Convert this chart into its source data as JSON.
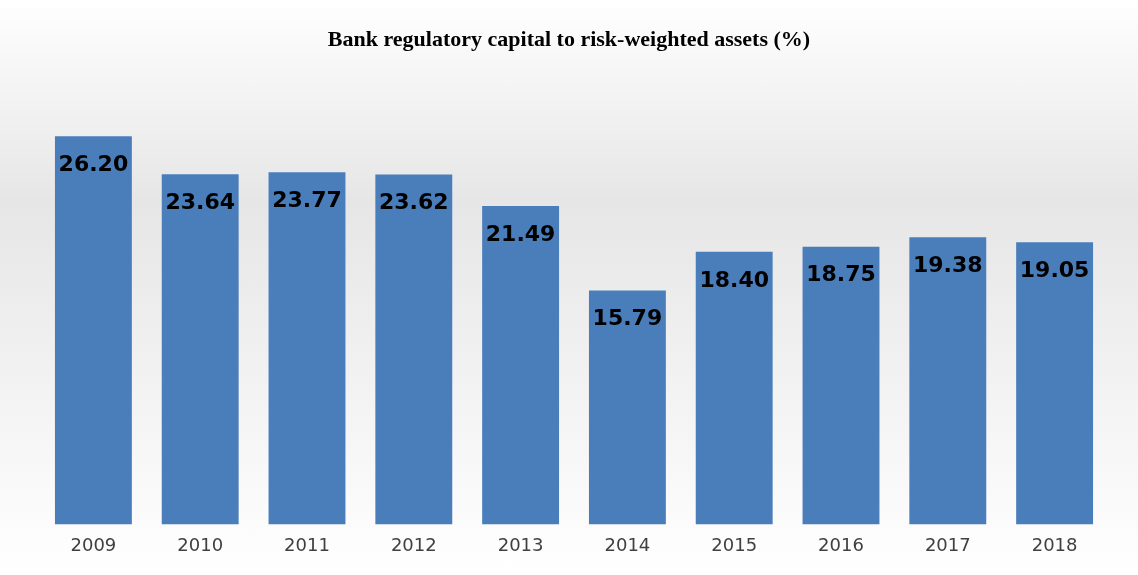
{
  "chart_data": {
    "type": "bar",
    "title": "Bank regulatory capital to risk-weighted assets (%)",
    "categories": [
      "2009",
      "2010",
      "2011",
      "2012",
      "2013",
      "2014",
      "2015",
      "2016",
      "2017",
      "2018"
    ],
    "values": [
      26.2,
      23.64,
      23.77,
      23.62,
      21.49,
      15.79,
      18.4,
      18.75,
      19.38,
      19.05
    ],
    "value_labels": [
      "26.20",
      "23.64",
      "23.77",
      "23.62",
      "21.49",
      "15.79",
      "18.40",
      "18.75",
      "19.38",
      "19.05"
    ],
    "color": "#4a7ebb",
    "grid": false,
    "legend": false
  }
}
